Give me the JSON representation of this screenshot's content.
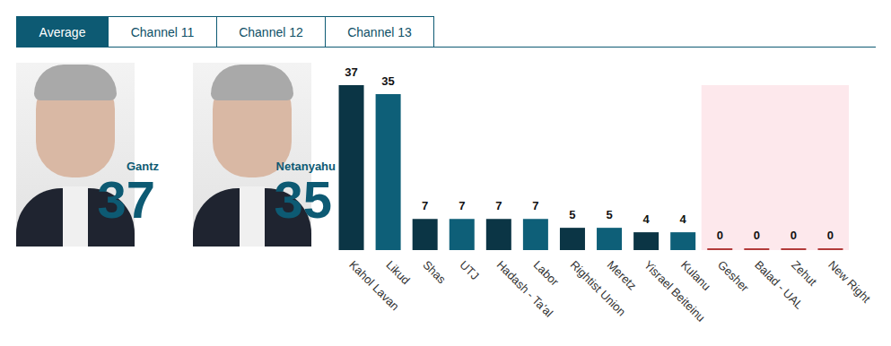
{
  "tabs": [
    "Average",
    "Channel 11",
    "Channel 12",
    "Channel 13"
  ],
  "candidates": [
    {
      "name": "Gantz",
      "seats": 37
    },
    {
      "name": "Netanyahu",
      "seats": 35
    }
  ],
  "chart_data": {
    "type": "bar",
    "categories": [
      "Kahol Lavan",
      "Likud",
      "Shas",
      "UTJ",
      "Hadash - Ta'al",
      "Labor",
      "Rightist Union",
      "Meretz",
      "Yisrael Beiteinu",
      "Kulanu",
      "Gesher",
      "Balad - UAL",
      "Zehut",
      "New Right"
    ],
    "values": [
      37,
      35,
      7,
      7,
      7,
      7,
      5,
      5,
      4,
      4,
      0,
      0,
      0,
      0
    ],
    "colors": [
      "#0b3545",
      "#0e5f78",
      "#0b3545",
      "#0e5f78",
      "#0b3545",
      "#0e5f78",
      "#0b3545",
      "#0e5f78",
      "#0b3545",
      "#0e5f78",
      "#b23a3a",
      "#b23a3a",
      "#b23a3a",
      "#b23a3a"
    ],
    "ylim": [
      0,
      37
    ],
    "data_labels": true,
    "tick_labels": "x",
    "grid": false
  }
}
